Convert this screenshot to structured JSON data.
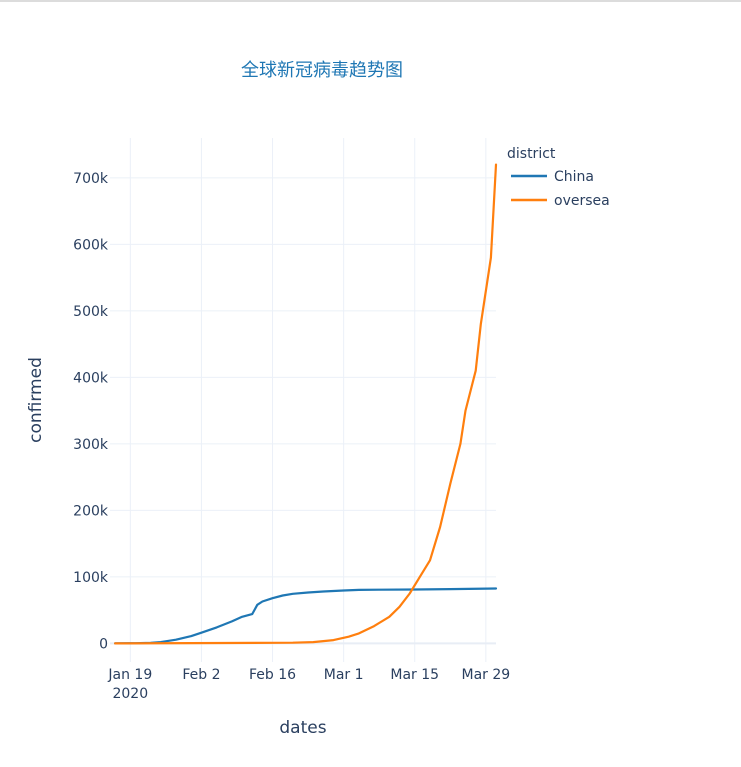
{
  "chart_data": {
    "type": "line",
    "title": "全球新冠病毒趋势图",
    "xlabel": "dates",
    "ylabel": "confirmed",
    "x_range": [
      "2020-01-15",
      "2020-03-31"
    ],
    "ylim": [
      -28000,
      760000
    ],
    "x_ticks": [
      {
        "date": "2020-01-19",
        "label": "Jan 19",
        "sublabel": "2020"
      },
      {
        "date": "2020-02-02",
        "label": "Feb 2"
      },
      {
        "date": "2020-02-16",
        "label": "Feb 16"
      },
      {
        "date": "2020-03-01",
        "label": "Mar 1"
      },
      {
        "date": "2020-03-15",
        "label": "Mar 15"
      },
      {
        "date": "2020-03-29",
        "label": "Mar 29"
      }
    ],
    "y_ticks": [
      {
        "value": 0,
        "label": "0"
      },
      {
        "value": 100000,
        "label": "100k"
      },
      {
        "value": 200000,
        "label": "200k"
      },
      {
        "value": 300000,
        "label": "300k"
      },
      {
        "value": 400000,
        "label": "400k"
      },
      {
        "value": 500000,
        "label": "500k"
      },
      {
        "value": 600000,
        "label": "600k"
      },
      {
        "value": 700000,
        "label": "700k"
      }
    ],
    "grid": true,
    "legend": {
      "title": "district",
      "placement": "top-right"
    },
    "series": [
      {
        "name": "China",
        "color": "#1f77b4",
        "points": [
          [
            "2020-01-16",
            50
          ],
          [
            "2020-01-20",
            300
          ],
          [
            "2020-01-23",
            800
          ],
          [
            "2020-01-25",
            2000
          ],
          [
            "2020-01-28",
            5500
          ],
          [
            "2020-01-31",
            11000
          ],
          [
            "2020-02-02",
            16000
          ],
          [
            "2020-02-05",
            24000
          ],
          [
            "2020-02-08",
            33000
          ],
          [
            "2020-02-10",
            40000
          ],
          [
            "2020-02-12",
            44000
          ],
          [
            "2020-02-13",
            58000
          ],
          [
            "2020-02-14",
            63000
          ],
          [
            "2020-02-16",
            68000
          ],
          [
            "2020-02-18",
            72000
          ],
          [
            "2020-02-20",
            74500
          ],
          [
            "2020-02-23",
            76500
          ],
          [
            "2020-02-26",
            78000
          ],
          [
            "2020-03-01",
            79500
          ],
          [
            "2020-03-04",
            80500
          ],
          [
            "2020-03-08",
            80800
          ],
          [
            "2020-03-15",
            81100
          ],
          [
            "2020-03-22",
            81600
          ],
          [
            "2020-03-31",
            82500
          ]
        ]
      },
      {
        "name": "oversea",
        "color": "#ff7f0e",
        "points": [
          [
            "2020-01-16",
            0
          ],
          [
            "2020-02-20",
            1000
          ],
          [
            "2020-02-24",
            2000
          ],
          [
            "2020-02-28",
            5000
          ],
          [
            "2020-03-02",
            10000
          ],
          [
            "2020-03-04",
            15000
          ],
          [
            "2020-03-07",
            26000
          ],
          [
            "2020-03-10",
            40000
          ],
          [
            "2020-03-12",
            55000
          ],
          [
            "2020-03-14",
            75000
          ],
          [
            "2020-03-16",
            100000
          ],
          [
            "2020-03-18",
            125000
          ],
          [
            "2020-03-20",
            175000
          ],
          [
            "2020-03-22",
            240000
          ],
          [
            "2020-03-24",
            300000
          ],
          [
            "2020-03-25",
            350000
          ],
          [
            "2020-03-27",
            410000
          ],
          [
            "2020-03-28",
            480000
          ],
          [
            "2020-03-30",
            580000
          ],
          [
            "2020-03-31",
            720000
          ]
        ]
      }
    ]
  }
}
